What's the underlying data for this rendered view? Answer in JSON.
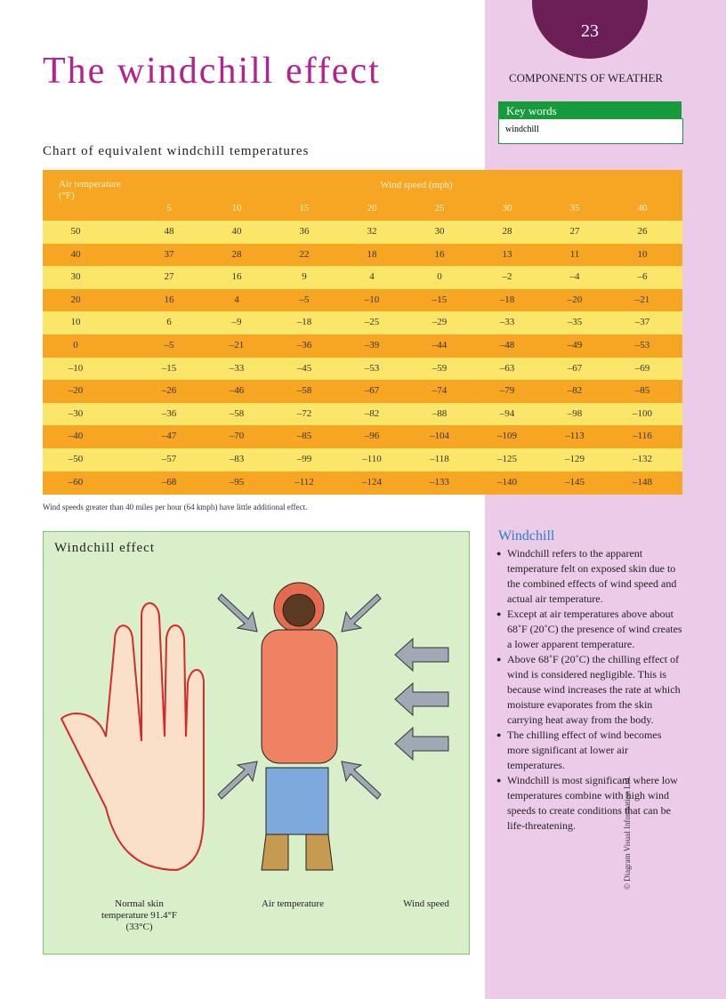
{
  "header": {
    "page_number": "23",
    "title": "The windchill effect",
    "section": "COMPONENTS OF WEATHER"
  },
  "key_words": {
    "heading": "Key words",
    "items": [
      "windchill"
    ]
  },
  "table": {
    "caption": "Chart of equivalent windchill temperatures",
    "row_header": "Air temperature (°F)",
    "group_header": "Wind speed (mph)",
    "columns": [
      "5",
      "10",
      "15",
      "20",
      "25",
      "30",
      "35",
      "40"
    ],
    "rows": [
      [
        "50",
        "48",
        "40",
        "36",
        "32",
        "30",
        "28",
        "27",
        "26"
      ],
      [
        "40",
        "37",
        "28",
        "22",
        "18",
        "16",
        "13",
        "11",
        "10"
      ],
      [
        "30",
        "27",
        "16",
        "9",
        "4",
        "0",
        "–2",
        "–4",
        "–6"
      ],
      [
        "20",
        "16",
        "4",
        "–5",
        "–10",
        "–15",
        "–18",
        "–20",
        "–21"
      ],
      [
        "10",
        "6",
        "–9",
        "–18",
        "–25",
        "–29",
        "–33",
        "–35",
        "–37"
      ],
      [
        "0",
        "–5",
        "–21",
        "–36",
        "–39",
        "–44",
        "–48",
        "–49",
        "–53"
      ],
      [
        "–10",
        "–15",
        "–33",
        "–45",
        "–53",
        "–59",
        "–63",
        "–67",
        "–69"
      ],
      [
        "–20",
        "–26",
        "–46",
        "–58",
        "–67",
        "–74",
        "–79",
        "–82",
        "–85"
      ],
      [
        "–30",
        "–36",
        "–58",
        "–72",
        "–82",
        "–88",
        "–94",
        "–98",
        "–100"
      ],
      [
        "–40",
        "–47",
        "–70",
        "–85",
        "–96",
        "–104",
        "–109",
        "–113",
        "–116"
      ],
      [
        "–50",
        "–57",
        "–83",
        "–99",
        "–110",
        "–118",
        "–125",
        "–129",
        "–132"
      ],
      [
        "–60",
        "–68",
        "–95",
        "–112",
        "–124",
        "–133",
        "–140",
        "–145",
        "–148"
      ]
    ],
    "footnote": "Wind speeds greater than 40 miles per hour (64 kmph) have little additional effect."
  },
  "illustration": {
    "title": "Windchill effect",
    "labels": [
      "Normal skin temperature 91.4°F (33°C)",
      "Air temperature",
      "Wind speed"
    ]
  },
  "sidebar": {
    "heading": "Windchill",
    "bullets": [
      "Windchill refers to the apparent temperature felt on exposed skin due to the combined effects of wind speed and actual air temperature.",
      "Except at air temperatures above about 68˚F (20˚C) the presence of wind creates a lower apparent temperature.",
      "Above 68˚F (20˚C) the chilling effect of wind is considered negligible. This is because wind increases the rate at which moisture evaporates from the skin carrying heat away from the body.",
      "The chilling effect of wind becomes more significant at lower air temperatures.",
      "Windchill is most significant where low temperatures combine with high wind speeds to create conditions that can be life-threatening."
    ]
  },
  "copyright": "© Diagram Visual Information Ltd."
}
